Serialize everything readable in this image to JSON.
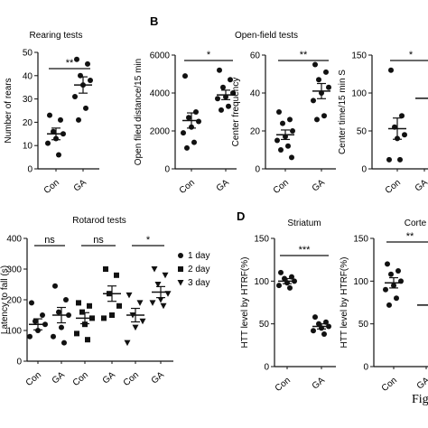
{
  "panel_letters": {
    "B": "B",
    "D": "D"
  },
  "fig_caption": "Fig",
  "significance": {
    "rearing": "**",
    "distance": "*",
    "center_freq": "**",
    "center_time": "*",
    "rotarod": [
      "ns",
      "ns",
      "*"
    ],
    "striatum": "***",
    "cortex": "**"
  },
  "chart_data": [
    {
      "id": "rearing",
      "type": "scatter",
      "title": "Rearing tests",
      "xlabel": "",
      "ylabel": "Number of rears",
      "categories": [
        "Con",
        "GA"
      ],
      "ylim": [
        0,
        50
      ],
      "yticks": [
        0,
        10,
        20,
        30,
        40,
        50
      ],
      "series": [
        {
          "category": "Con",
          "points": [
            23,
            21,
            16,
            15,
            13,
            11,
            6
          ],
          "mean": 15,
          "sem": 2.5
        },
        {
          "category": "GA",
          "points": [
            47,
            45,
            40,
            38,
            36,
            31,
            26,
            21
          ],
          "mean": 36,
          "sem": 3.5
        }
      ]
    },
    {
      "id": "distance",
      "type": "scatter",
      "title": "Open-field tests",
      "xlabel": "",
      "ylabel": "Open filed distance/15 min",
      "categories": [
        "Con",
        "GA"
      ],
      "ylim": [
        0,
        6000
      ],
      "yticks": [
        0,
        2000,
        4000,
        6000
      ],
      "series": [
        {
          "category": "Con",
          "points": [
            4900,
            3000,
            2700,
            2500,
            2200,
            1900,
            1400,
            1100
          ],
          "mean": 2550,
          "sem": 400
        },
        {
          "category": "GA",
          "points": [
            5200,
            4700,
            4300,
            4000,
            3800,
            3700,
            3300,
            3100
          ],
          "mean": 3900,
          "sem": 250
        }
      ]
    },
    {
      "id": "center_freq",
      "type": "scatter",
      "title": "",
      "xlabel": "",
      "ylabel": "Center frequency",
      "categories": [
        "Con",
        "GA"
      ],
      "ylim": [
        0,
        60
      ],
      "yticks": [
        0,
        20,
        40,
        60
      ],
      "series": [
        {
          "category": "Con",
          "points": [
            30,
            26,
            24,
            20,
            17,
            15,
            12,
            10,
            6
          ],
          "mean": 18,
          "sem": 2.5
        },
        {
          "category": "GA",
          "points": [
            55,
            51,
            47,
            43,
            40,
            36,
            28,
            26
          ],
          "mean": 41,
          "sem": 4
        }
      ]
    },
    {
      "id": "center_time",
      "type": "scatter",
      "title": "",
      "xlabel": "",
      "ylabel": "Center time/15 min  S",
      "categories": [
        "Con",
        "GA"
      ],
      "ylim": [
        0,
        150
      ],
      "yticks": [
        0,
        50,
        100,
        150
      ],
      "series": [
        {
          "category": "Con",
          "points": [
            130,
            70,
            55,
            45,
            40,
            12,
            12
          ],
          "mean": 53,
          "sem": 14
        },
        {
          "category": "GA",
          "points": [],
          "mean": 93,
          "sem": null
        }
      ]
    },
    {
      "id": "rotarod",
      "type": "scatter",
      "title": "Rotarod tests",
      "xlabel": "",
      "ylabel": "Latency to fall (s)",
      "categories": [
        "Con",
        "GA",
        "Con",
        "GA",
        "Con",
        "GA"
      ],
      "ylim": [
        0,
        400
      ],
      "yticks": [
        0,
        100,
        200,
        300,
        400
      ],
      "legend_position": "right",
      "series": [
        {
          "name": "1 day",
          "marker": "circle",
          "groups": [
            {
              "category": "Con",
              "points": [
                190,
                150,
                130,
                120,
                100,
                80
              ],
              "mean": 120,
              "sem": 18
            },
            {
              "category": "GA",
              "points": [
                245,
                200,
                160,
                150,
                110,
                80,
                60
              ],
              "mean": 150,
              "sem": 25
            }
          ]
        },
        {
          "name": "2 day",
          "marker": "square",
          "groups": [
            {
              "category": "Con",
              "points": [
                190,
                180,
                160,
                140,
                120,
                90,
                70
              ],
              "mean": 140,
              "sem": 18
            },
            {
              "category": "GA",
              "points": [
                300,
                280,
                220,
                180,
                150,
                140
              ],
              "mean": 220,
              "sem": 25
            }
          ]
        },
        {
          "name": "3 day",
          "marker": "triangle-down",
          "groups": [
            {
              "category": "Con",
              "points": [
                215,
                190,
                150,
                130,
                110,
                60
              ],
              "mean": 150,
              "sem": 22
            },
            {
              "category": "GA",
              "points": [
                300,
                280,
                250,
                220,
                200,
                190,
                180
              ],
              "mean": 225,
              "sem": 18
            }
          ]
        }
      ]
    },
    {
      "id": "striatum",
      "type": "scatter",
      "title": "Striatum",
      "xlabel": "",
      "ylabel": "HTT level by HTRF(%)",
      "categories": [
        "Con",
        "GA"
      ],
      "ylim": [
        0,
        150
      ],
      "yticks": [
        0,
        50,
        100,
        150
      ],
      "series": [
        {
          "category": "Con",
          "points": [
            110,
            105,
            103,
            100,
            98,
            95,
            92
          ],
          "mean": 100,
          "sem": 3
        },
        {
          "category": "GA",
          "points": [
            58,
            52,
            50,
            47,
            45,
            42,
            38
          ],
          "mean": 47,
          "sem": 3
        }
      ]
    },
    {
      "id": "cortex",
      "type": "scatter",
      "title": "Corte",
      "xlabel": "",
      "ylabel": "HTT level by HTRF(%)",
      "categories": [
        "Con",
        "GA"
      ],
      "ylim": [
        0,
        150
      ],
      "yticks": [
        0,
        50,
        100,
        150
      ],
      "series": [
        {
          "category": "Con",
          "points": [
            120,
            112,
            108,
            100,
            95,
            90,
            80,
            72
          ],
          "mean": 98,
          "sem": 6
        },
        {
          "category": "GA",
          "points": [],
          "mean": 72,
          "sem": null
        }
      ]
    }
  ]
}
